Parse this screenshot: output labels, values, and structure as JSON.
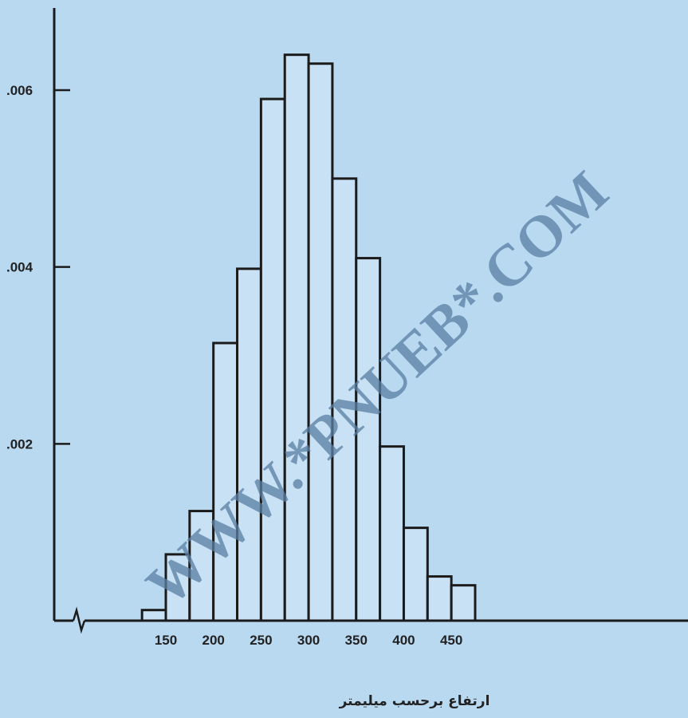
{
  "chart_data": {
    "type": "bar",
    "subtype": "histogram",
    "bin_width": 25,
    "bins": [
      {
        "x0": 125,
        "x1": 150,
        "value": 0.00012
      },
      {
        "x0": 150,
        "x1": 175,
        "value": 0.00075
      },
      {
        "x0": 175,
        "x1": 200,
        "value": 0.00124
      },
      {
        "x0": 200,
        "x1": 225,
        "value": 0.00314
      },
      {
        "x0": 225,
        "x1": 250,
        "value": 0.00398
      },
      {
        "x0": 250,
        "x1": 275,
        "value": 0.0059
      },
      {
        "x0": 275,
        "x1": 300,
        "value": 0.0064
      },
      {
        "x0": 300,
        "x1": 325,
        "value": 0.0063
      },
      {
        "x0": 325,
        "x1": 350,
        "value": 0.005
      },
      {
        "x0": 350,
        "x1": 375,
        "value": 0.0041
      },
      {
        "x0": 375,
        "x1": 400,
        "value": 0.00197
      },
      {
        "x0": 400,
        "x1": 425,
        "value": 0.00105
      },
      {
        "x0": 425,
        "x1": 450,
        "value": 0.0005
      },
      {
        "x0": 450,
        "x1": 475,
        "value": 0.0004
      }
    ],
    "xlim": [
      100,
      490
    ],
    "ylim": [
      0,
      0.006
    ],
    "x_axis_break": true,
    "x_ticks": [
      150,
      200,
      250,
      300,
      350,
      400,
      450
    ],
    "x_tick_labels": [
      "150",
      "200",
      "250",
      "300",
      "350",
      "400",
      "450"
    ],
    "y_ticks": [
      0.002,
      0.004,
      0.006
    ],
    "y_tick_labels": [
      ".002",
      ".004",
      ".006"
    ],
    "xlabel": "ارتفاع برحسب میلیمتر",
    "ylabel": "",
    "title": "",
    "grid": false,
    "legend": "none",
    "bar_fill": "#c8e1f4",
    "bar_stroke": "#1b1b1b"
  },
  "watermark": {
    "text": "WWW.*PNUEB*.COM",
    "color": "#5a7fa3"
  }
}
